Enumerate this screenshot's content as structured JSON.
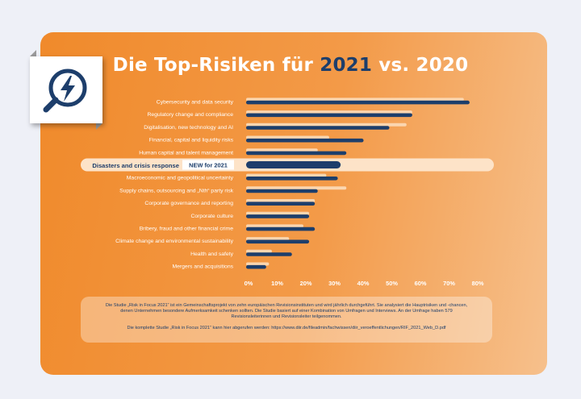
{
  "title": {
    "prefix": "Die Top-Risiken für ",
    "year1": "2021",
    "middle": " vs. ",
    "year2": "2020"
  },
  "colors": {
    "series_2021": "#1d3e6b",
    "series_2020": "#fbd6b0",
    "accent_orange": "#f08a2b"
  },
  "icon": "magnifier-lightning-icon",
  "highlight_tag": "NEW for 2021",
  "footer": {
    "text1": "Die Studie „Risk in Focus 2021“ ist ein Gemeinschaftsprojekt von zehn europäischen Revisionsinstituten und wird jährlich durchgeführt. Sie analysiert die Hauptrisiken und -chancen, denen Unternehmen besondere Aufmerksamkeit schenken sollten. Die Studie basiert auf einer Kombination von Umfragen und Interviews. An der Umfrage haben 579 Revisionsleiterinnen und Revisionsleiter teilgenommen.",
    "text2": "Die komplette Studie „Risk in Focus 2021“ kann hier abgerufen werden: https://www.diir.de/fileadmin/fachwissen/diir_veroeffentlichungen/RIF_2021_Web_D.pdf"
  },
  "chart_data": {
    "type": "bar",
    "orientation": "horizontal",
    "categories": [
      "Cybersecurity and data security",
      "Regulatory change and compliance",
      "Digitalisation, new technology and AI",
      "Financial, capital and liquidity risks",
      "Human capital and talent management",
      "Disasters and crisis response",
      "Macroeconomic and geopolitical uncertainty",
      "Supply chains, outsourcing and „Nth“ party risk",
      "Corporate governance and reporting",
      "Corporate culture",
      "Bribery, fraud and other financial crime",
      "Climate change and environmental sustainability",
      "Health and safety",
      "Mergers and acquisitions"
    ],
    "highlight_category": "Disasters and crisis response",
    "series": [
      {
        "name": "2020",
        "values": [
          76,
          58,
          56,
          29,
          25,
          null,
          28,
          35,
          24,
          22,
          20,
          15,
          9,
          8
        ]
      },
      {
        "name": "2021",
        "values": [
          78,
          58,
          50,
          41,
          35,
          33,
          32,
          25,
          24,
          22,
          24,
          22,
          16,
          7
        ]
      }
    ],
    "x_ticks": [
      "0%",
      "10%",
      "20%",
      "30%",
      "40%",
      "50%",
      "60%",
      "70%",
      "80%"
    ],
    "xlim": [
      0,
      80
    ],
    "grid": false
  }
}
